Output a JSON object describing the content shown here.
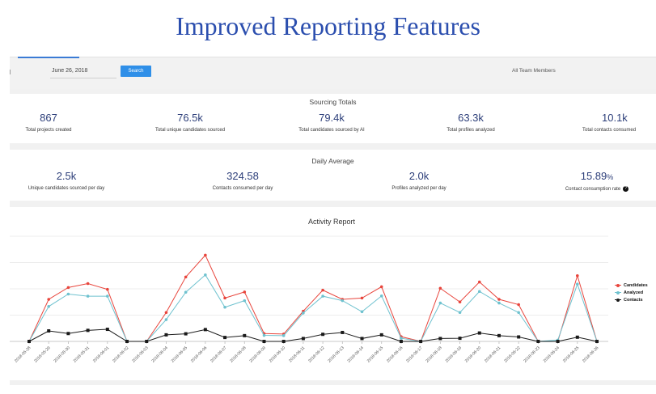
{
  "page_title": "Improved Reporting Features",
  "toolbar": {
    "date_value": "June 26, 2018",
    "search_label": "Search",
    "team_value": "All Team Members"
  },
  "sourcing_totals": {
    "title": "Sourcing Totals",
    "items": [
      {
        "value": "867",
        "label": "Total projects created"
      },
      {
        "value": "76.5k",
        "label": "Total unique candidates sourced"
      },
      {
        "value": "79.4k",
        "label": "Total candidates sourced by AI"
      },
      {
        "value": "63.3k",
        "label": "Total profiles analyzed"
      },
      {
        "value": "10.1k",
        "label": "Total contacts consumed"
      }
    ]
  },
  "daily_average": {
    "title": "Daily Average",
    "items": [
      {
        "value": "2.5k",
        "label": "Unique candidates sourced per day"
      },
      {
        "value": "324.58",
        "label": "Contacts consumed per day"
      },
      {
        "value": "2.0k",
        "label": "Profiles analyzed per day"
      },
      {
        "value": "15.89",
        "unit": "%",
        "label": "Contact consumption rate"
      }
    ]
  },
  "colors": {
    "candidates": "#e8453c",
    "analyzed": "#6fc2cf",
    "contacts": "#1a1a1a",
    "accent": "#2f8fe8",
    "title": "#2b4eae"
  },
  "chart_data": {
    "type": "line",
    "title": "Activity Report",
    "x": [
      "2018-05-28",
      "2018-05-29",
      "2018-05-30",
      "2018-05-31",
      "2018-06-01",
      "2018-06-02",
      "2018-06-03",
      "2018-06-04",
      "2018-06-05",
      "2018-06-06",
      "2018-06-07",
      "2018-06-08",
      "2018-06-09",
      "2018-06-10",
      "2018-06-11",
      "2018-06-12",
      "2018-06-13",
      "2018-06-14",
      "2018-06-15",
      "2018-06-16",
      "2018-06-17",
      "2018-06-18",
      "2018-06-19",
      "2018-06-20",
      "2018-06-21",
      "2018-06-22",
      "2018-06-23",
      "2018-06-24",
      "2018-06-25",
      "2018-06-26"
    ],
    "ylim": [
      0,
      4000
    ],
    "grid": true,
    "legend": "right",
    "series": [
      {
        "name": "Candidates",
        "values": [
          0,
          1600,
          2050,
          2200,
          1980,
          0,
          0,
          1100,
          2450,
          3280,
          1650,
          1880,
          300,
          280,
          1150,
          1950,
          1600,
          1650,
          2080,
          180,
          0,
          2020,
          1500,
          2260,
          1600,
          1400,
          0,
          0,
          2500,
          0
        ]
      },
      {
        "name": "Analyzed",
        "values": [
          0,
          1330,
          1800,
          1720,
          1720,
          0,
          0,
          830,
          1870,
          2530,
          1300,
          1550,
          230,
          220,
          1080,
          1720,
          1550,
          1130,
          1730,
          120,
          0,
          1460,
          1100,
          1900,
          1460,
          1100,
          0,
          50,
          2180,
          0
        ]
      },
      {
        "name": "Contacts",
        "values": [
          0,
          400,
          300,
          420,
          460,
          0,
          0,
          250,
          290,
          450,
          150,
          220,
          0,
          0,
          110,
          270,
          340,
          110,
          250,
          0,
          0,
          110,
          120,
          320,
          220,
          170,
          0,
          0,
          160,
          0
        ]
      }
    ]
  }
}
